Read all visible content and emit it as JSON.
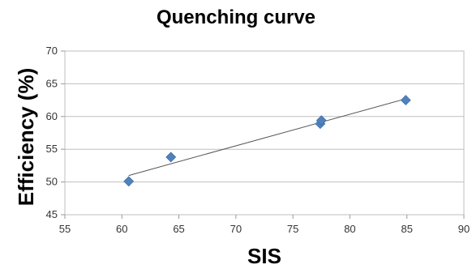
{
  "chart_data": {
    "type": "scatter",
    "title": "Quenching curve",
    "xlabel": "SIS",
    "ylabel": "Efficiency (%)",
    "xlim": [
      55,
      90
    ],
    "ylim": [
      45,
      70
    ],
    "xticks": [
      55,
      60,
      65,
      70,
      75,
      80,
      85,
      90
    ],
    "yticks": [
      45,
      50,
      55,
      60,
      65,
      70
    ],
    "grid": "horizontal",
    "legend": "none",
    "series": [
      {
        "marker": "diamond",
        "color": "#4F81BD",
        "points": [
          {
            "x": 60.6,
            "y": 50.1
          },
          {
            "x": 64.3,
            "y": 53.8
          },
          {
            "x": 77.4,
            "y": 58.9
          },
          {
            "x": 77.5,
            "y": 59.4
          },
          {
            "x": 84.9,
            "y": 62.5
          }
        ]
      }
    ],
    "trendline": {
      "type": "linear",
      "color": "#555555",
      "x_start": 60.6,
      "x_end": 84.9
    }
  }
}
